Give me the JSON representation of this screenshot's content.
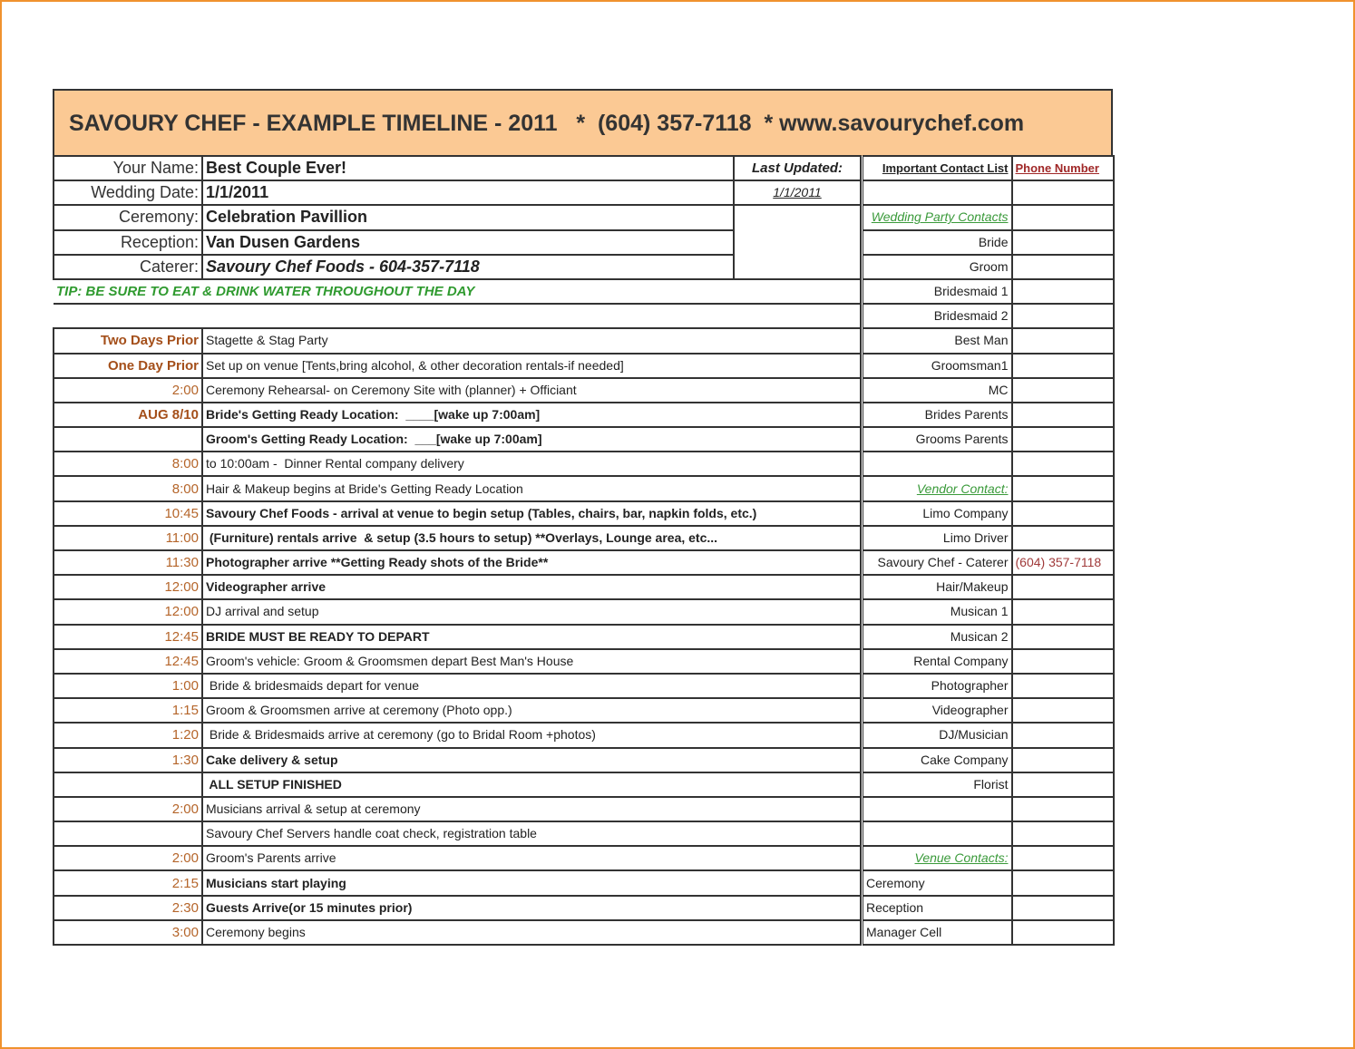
{
  "title": "SAVOURY CHEF - EXAMPLE TIMELINE - 2011   *  (604) 357-7118  * www.savourychef.com",
  "info": [
    {
      "label": "Your Name:",
      "value": "Best Couple Ever!"
    },
    {
      "label": "Wedding Date:",
      "value": "1/1/2011"
    },
    {
      "label": "Ceremony:",
      "value": "Celebration Pavillion"
    },
    {
      "label": "Reception:",
      "value": "Van Dusen Gardens"
    },
    {
      "label": "Caterer:",
      "value": "Savoury Chef Foods - 604-357-7118"
    }
  ],
  "last_updated_label": "Last Updated:",
  "last_updated_value": "1/1/2011",
  "tip": "TIP: BE SURE TO EAT & DRINK WATER THROUGHOUT THE DAY",
  "timeline": [
    {
      "time": "Two Days Prior",
      "text": "Stagette & Stag Party",
      "bold": false,
      "time_bold": true
    },
    {
      "time": "One Day Prior",
      "text": "Set up on venue [Tents,bring alcohol, & other decoration rentals-if needed]",
      "bold": false,
      "time_bold": true
    },
    {
      "time": "2:00",
      "text": "Ceremony Rehearsal- on Ceremony Site with (planner) + Officiant",
      "bold": false
    },
    {
      "time": "AUG 8/10",
      "text": "Bride's Getting Ready Location:  ____[wake up 7:00am]",
      "bold": true,
      "time_bold": true
    },
    {
      "time": "",
      "text": "Groom's Getting Ready Location:  ___[wake up 7:00am]",
      "bold": true
    },
    {
      "time": "8:00",
      "text": "to 10:00am -  Dinner Rental company delivery",
      "bold": false
    },
    {
      "time": "8:00",
      "text": "Hair & Makeup begins at Bride's Getting Ready Location",
      "bold": false
    },
    {
      "time": "10:45",
      "text": "Savoury Chef Foods - arrival at venue to begin setup (Tables, chairs, bar, napkin folds, etc.)",
      "bold": true
    },
    {
      "time": "11:00",
      "text": " (Furniture) rentals arrive  & setup (3.5 hours to setup) **Overlays, Lounge area, etc...",
      "bold": true
    },
    {
      "time": "11:30",
      "text": "Photographer arrive **Getting Ready shots of the Bride**",
      "bold": true
    },
    {
      "time": "12:00",
      "text": "Videographer arrive",
      "bold": true
    },
    {
      "time": "12:00",
      "text": "DJ arrival and setup",
      "bold": false
    },
    {
      "time": "12:45",
      "text": "BRIDE MUST BE READY TO DEPART",
      "bold": true
    },
    {
      "time": "12:45",
      "text": "Groom's vehicle: Groom & Groomsmen depart Best Man's House",
      "bold": false
    },
    {
      "time": "1:00",
      "text": " Bride & bridesmaids depart for venue",
      "bold": false
    },
    {
      "time": "1:15",
      "text": "Groom & Groomsmen arrive at ceremony (Photo opp.)",
      "bold": false
    },
    {
      "time": "1:20",
      "text": " Bride & Bridesmaids arrive at ceremony (go to Bridal Room +photos)",
      "bold": false
    },
    {
      "time": "1:30",
      "text": "Cake delivery & setup",
      "bold": true
    },
    {
      "time": "",
      "text": " ALL SETUP FINISHED",
      "bold": true
    },
    {
      "time": "2:00",
      "text": "Musicians arrival & setup at ceremony",
      "bold": false
    },
    {
      "time": "",
      "text": "Savoury Chef Servers handle coat check, registration table",
      "bold": false
    },
    {
      "time": "2:00",
      "text": "Groom's Parents arrive",
      "bold": false
    },
    {
      "time": "2:15",
      "text": "Musicians start playing",
      "bold": true
    },
    {
      "time": "2:30",
      "text": "Guests Arrive(or 15 minutes prior)",
      "bold": true
    },
    {
      "time": "3:00",
      "text": "Ceremony begins",
      "bold": false
    }
  ],
  "contacts": {
    "header": "Important Contact List",
    "phone_header": "Phone Number",
    "rows": [
      {
        "name": "",
        "phone": "",
        "type": "item"
      },
      {
        "name": "Wedding Party Contacts",
        "phone": "",
        "type": "section"
      },
      {
        "name": "Bride",
        "phone": "",
        "type": "item"
      },
      {
        "name": "Groom",
        "phone": "",
        "type": "item"
      },
      {
        "name": "Bridesmaid 1",
        "phone": "",
        "type": "item"
      },
      {
        "name": "Bridesmaid 2",
        "phone": "",
        "type": "item"
      },
      {
        "name": "Best Man",
        "phone": "",
        "type": "item"
      },
      {
        "name": "Groomsman1",
        "phone": "",
        "type": "item"
      },
      {
        "name": "MC",
        "phone": "",
        "type": "item"
      },
      {
        "name": "Brides Parents",
        "phone": "",
        "type": "item"
      },
      {
        "name": "Grooms Parents",
        "phone": "",
        "type": "item"
      },
      {
        "name": "",
        "phone": "",
        "type": "item"
      },
      {
        "name": "Vendor Contact:",
        "phone": "",
        "type": "section"
      },
      {
        "name": "Limo Company",
        "phone": "",
        "type": "item"
      },
      {
        "name": "Limo Driver",
        "phone": "",
        "type": "item"
      },
      {
        "name": "Savoury Chef - Caterer",
        "phone": "(604) 357-7118",
        "type": "item"
      },
      {
        "name": "Hair/Makeup",
        "phone": "",
        "type": "item"
      },
      {
        "name": "Musican 1",
        "phone": "",
        "type": "item"
      },
      {
        "name": "Musican 2",
        "phone": "",
        "type": "item"
      },
      {
        "name": "Rental Company",
        "phone": "",
        "type": "item"
      },
      {
        "name": "Photographer",
        "phone": "",
        "type": "item"
      },
      {
        "name": "Videographer",
        "phone": "",
        "type": "item"
      },
      {
        "name": "DJ/Musician",
        "phone": "",
        "type": "item"
      },
      {
        "name": "Cake Company",
        "phone": "",
        "type": "item"
      },
      {
        "name": "Florist",
        "phone": "",
        "type": "item"
      },
      {
        "name": "",
        "phone": "",
        "type": "item"
      },
      {
        "name": "",
        "phone": "",
        "type": "item"
      },
      {
        "name": "Venue Contacts:",
        "phone": "",
        "type": "section"
      },
      {
        "name": "Ceremony",
        "phone": "",
        "type": "venue"
      },
      {
        "name": "Reception",
        "phone": "",
        "type": "venue"
      },
      {
        "name": "Manager Cell",
        "phone": "",
        "type": "venue"
      }
    ]
  },
  "colors": {
    "title_band": "#fbc994",
    "time": "#b5652a",
    "green": "#2f9a2f",
    "phone": "#a02828",
    "frame": "#f0922e"
  }
}
